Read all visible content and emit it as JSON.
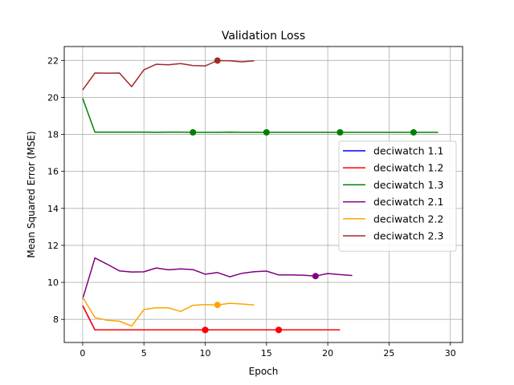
{
  "chart_data": {
    "type": "line",
    "title": "Validation Loss",
    "xlabel": "Epoch",
    "ylabel": "Mean Squared Error (MSE)",
    "xlim": [
      -1.5,
      31.0
    ],
    "ylim": [
      6.75,
      22.75
    ],
    "xticks": [
      0,
      5,
      10,
      15,
      20,
      25,
      30
    ],
    "yticks": [
      8,
      10,
      12,
      14,
      16,
      18,
      20,
      22
    ],
    "grid": true,
    "legend_position": "center-right",
    "series": [
      {
        "name": "deciwatch 1.1",
        "color": "#0000ff",
        "x": [
          0,
          1,
          2,
          3,
          4,
          5,
          6,
          7,
          8,
          9,
          10,
          11,
          12,
          13,
          14,
          15,
          16,
          17,
          18,
          19,
          20
        ],
        "y": [
          8.75,
          7.43,
          7.43,
          7.43,
          7.43,
          7.43,
          7.43,
          7.43,
          7.43,
          7.43,
          7.43,
          7.43,
          7.43,
          7.43,
          7.43,
          7.43,
          7.43,
          7.43,
          7.43,
          7.43,
          7.43
        ],
        "markers": [
          {
            "x": 10,
            "y": 7.43
          },
          {
            "x": 16,
            "y": 7.43
          }
        ]
      },
      {
        "name": "deciwatch 1.2",
        "color": "#ff0000",
        "x": [
          0,
          1,
          2,
          3,
          4,
          5,
          6,
          7,
          8,
          9,
          10,
          11,
          12,
          13,
          14,
          15,
          16,
          17,
          18,
          19,
          20,
          21
        ],
        "y": [
          8.75,
          7.43,
          7.43,
          7.43,
          7.43,
          7.43,
          7.43,
          7.43,
          7.43,
          7.43,
          7.43,
          7.43,
          7.43,
          7.43,
          7.43,
          7.43,
          7.43,
          7.43,
          7.43,
          7.43,
          7.43,
          7.43
        ],
        "markers": [
          {
            "x": 10,
            "y": 7.43
          },
          {
            "x": 16,
            "y": 7.43
          }
        ]
      },
      {
        "name": "deciwatch 1.3",
        "color": "#008000",
        "x": [
          0,
          1,
          2,
          3,
          4,
          5,
          6,
          7,
          8,
          9,
          10,
          11,
          12,
          13,
          14,
          15,
          16,
          17,
          18,
          19,
          20,
          21,
          22,
          23,
          24,
          25,
          26,
          27,
          28,
          29
        ],
        "y": [
          19.95,
          18.12,
          18.12,
          18.12,
          18.12,
          18.12,
          18.11,
          18.12,
          18.12,
          18.11,
          18.11,
          18.11,
          18.12,
          18.11,
          18.11,
          18.11,
          18.11,
          18.11,
          18.11,
          18.11,
          18.11,
          18.11,
          18.11,
          18.11,
          18.11,
          18.11,
          18.11,
          18.11,
          18.11,
          18.11
        ],
        "markers": [
          {
            "x": 9,
            "y": 18.11
          },
          {
            "x": 15,
            "y": 18.11
          },
          {
            "x": 21,
            "y": 18.11
          },
          {
            "x": 27,
            "y": 18.11
          }
        ]
      },
      {
        "name": "deciwatch 2.1",
        "color": "#800080",
        "x": [
          0,
          1,
          2,
          3,
          4,
          5,
          6,
          7,
          8,
          9,
          10,
          11,
          12,
          13,
          14,
          15,
          16,
          17,
          18,
          19,
          20,
          21,
          22
        ],
        "y": [
          9.1,
          11.32,
          10.98,
          10.62,
          10.56,
          10.57,
          10.78,
          10.68,
          10.73,
          10.69,
          10.44,
          10.53,
          10.3,
          10.49,
          10.58,
          10.61,
          10.4,
          10.4,
          10.39,
          10.34,
          10.48,
          10.42,
          10.37
        ],
        "markers": [
          {
            "x": 19,
            "y": 10.34
          }
        ]
      },
      {
        "name": "deciwatch 2.2",
        "color": "#ffa500",
        "x": [
          0,
          1,
          2,
          3,
          4,
          5,
          6,
          7,
          8,
          9,
          10,
          11,
          12,
          13,
          14
        ],
        "y": [
          9.2,
          8.1,
          7.95,
          7.9,
          7.64,
          8.53,
          8.63,
          8.62,
          8.43,
          8.76,
          8.8,
          8.78,
          8.87,
          8.83,
          8.78
        ],
        "markers": [
          {
            "x": 11,
            "y": 8.78
          }
        ]
      },
      {
        "name": "deciwatch 2.3",
        "color": "#a52a2a",
        "x": [
          0,
          1,
          2,
          3,
          4,
          5,
          6,
          7,
          8,
          9,
          10,
          11,
          12,
          13,
          14
        ],
        "y": [
          20.4,
          21.32,
          21.31,
          21.32,
          20.58,
          21.49,
          21.79,
          21.76,
          21.83,
          21.72,
          21.7,
          21.99,
          21.98,
          21.92,
          21.98
        ],
        "markers": [
          {
            "x": 11,
            "y": 21.99
          }
        ]
      }
    ]
  }
}
